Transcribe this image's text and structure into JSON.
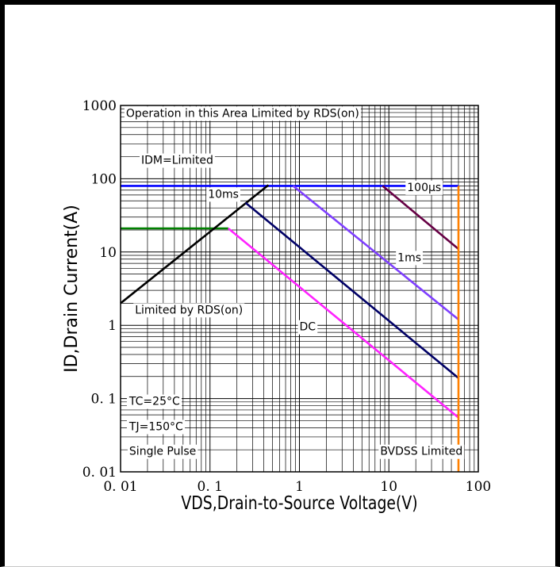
{
  "chart_data": {
    "type": "line",
    "title": "",
    "xlabel": "VDS,Drain-to-Source Voltage(V)",
    "ylabel": "ID,Drain Current(A)",
    "xscale": "log",
    "yscale": "log",
    "xlim": [
      0.01,
      100
    ],
    "ylim": [
      0.01,
      1000
    ],
    "grid": true,
    "x_ticks": [
      "0. 01",
      "0. 1",
      "1",
      "10",
      "100"
    ],
    "y_ticks": [
      "1000",
      "100",
      "10",
      "1",
      "0. 1",
      "0. 01"
    ],
    "series": [
      {
        "name": "",
        "color": "#0000ff",
        "points": [
          [
            0.01,
            80
          ],
          [
            60,
            80
          ]
        ]
      },
      {
        "name": "",
        "color": "#008000",
        "points": [
          [
            0.01,
            21
          ],
          [
            0.16,
            21
          ]
        ]
      },
      {
        "name": "",
        "color": "#000000",
        "points": [
          [
            0.01,
            2
          ],
          [
            0.45,
            82
          ]
        ]
      },
      {
        "name": "",
        "color": "#ff22ff",
        "points": [
          [
            0.16,
            21
          ],
          [
            60,
            0.055
          ]
        ]
      },
      {
        "name": "",
        "color": "#000066",
        "points": [
          [
            0.25,
            47
          ],
          [
            60,
            0.19
          ]
        ]
      },
      {
        "name": "",
        "color": "#7f3fff",
        "points": [
          [
            0.85,
            80
          ],
          [
            60,
            1.2
          ]
        ]
      },
      {
        "name": "",
        "color": "#660044",
        "points": [
          [
            8.5,
            80
          ],
          [
            60,
            11
          ]
        ]
      },
      {
        "name": "",
        "color": "#ff8000",
        "points": [
          [
            60,
            80
          ],
          [
            60,
            0.01
          ]
        ]
      }
    ],
    "annotations": [
      {
        "text": "Operation in this Area Limited by RDS(on)",
        "x": 0.0115,
        "y": 700
      },
      {
        "text": "IDM=Limited",
        "x": 0.017,
        "y": 160
      },
      {
        "text": "10ms",
        "x": 0.095,
        "y": 55
      },
      {
        "text": "100μs",
        "x": 16,
        "y": 68
      },
      {
        "text": "1ms",
        "x": 12.5,
        "y": 7.5
      },
      {
        "text": "Limited by RDS(on)",
        "x": 0.0145,
        "y": 1.45
      },
      {
        "text": "DC",
        "x": 1.0,
        "y": 0.85
      },
      {
        "text": "TC=25°C",
        "x": 0.0125,
        "y": 0.082
      },
      {
        "text": "TJ=150°C",
        "x": 0.0125,
        "y": 0.037
      },
      {
        "text": "Single Pulse",
        "x": 0.0125,
        "y": 0.017
      },
      {
        "text": "BVDSS Limited",
        "x": 8.0,
        "y": 0.017
      }
    ]
  }
}
